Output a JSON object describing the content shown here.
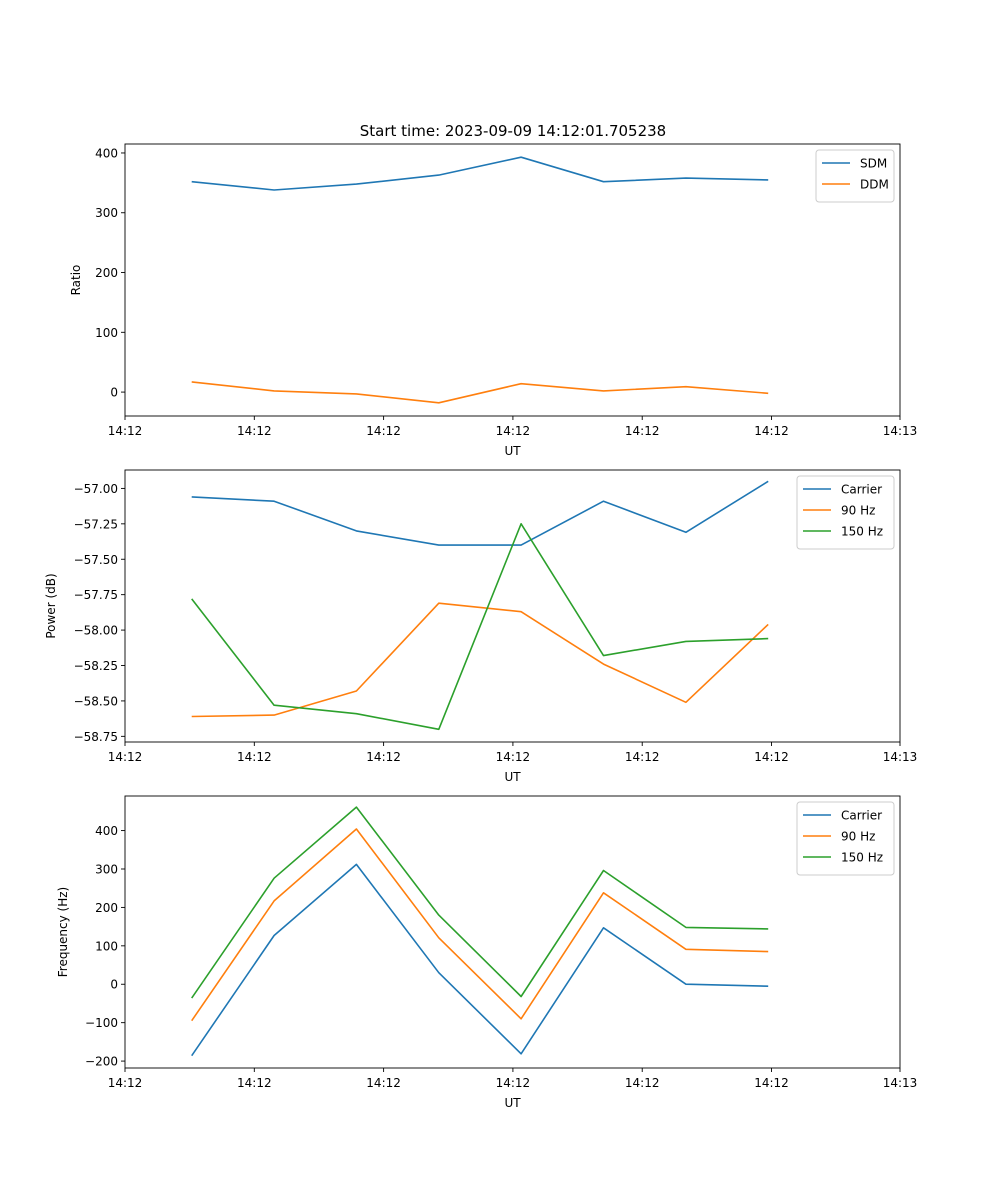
{
  "figure": {
    "title": "Start time: 2023-09-09 14:12:01.705238"
  },
  "chart_data": [
    {
      "type": "line",
      "title": "Start time: 2023-09-09 14:12:01.705238",
      "xlabel": "UT",
      "ylabel": "Ratio",
      "x": [
        1,
        2,
        3,
        4,
        5,
        6,
        7,
        8
      ],
      "xlim": [
        0.19,
        9.6
      ],
      "xticks": [
        0.19,
        1.76,
        3.33,
        4.9,
        6.47,
        8.04,
        9.6
      ],
      "xtick_labels": [
        "14:12",
        "14:12",
        "14:12",
        "14:12",
        "14:12",
        "14:12",
        "14:13"
      ],
      "ylim": [
        -40,
        415
      ],
      "yticks": [
        0,
        100,
        200,
        300,
        400
      ],
      "ytick_labels": [
        "0",
        "100",
        "200",
        "300",
        "400"
      ],
      "legend_position": "top-right",
      "series": [
        {
          "name": "SDM",
          "color": "#1f77b4",
          "values": [
            352,
            338,
            348,
            363,
            393,
            352,
            358,
            355
          ]
        },
        {
          "name": "DDM",
          "color": "#ff7f0e",
          "values": [
            17,
            2,
            -3,
            -18,
            14,
            2,
            9,
            -2
          ]
        }
      ]
    },
    {
      "type": "line",
      "title": "",
      "xlabel": "UT",
      "ylabel": "Power (dB)",
      "x": [
        1,
        2,
        3,
        4,
        5,
        6,
        7,
        8
      ],
      "xlim": [
        0.19,
        9.6
      ],
      "xticks": [
        0.19,
        1.76,
        3.33,
        4.9,
        6.47,
        8.04,
        9.6
      ],
      "xtick_labels": [
        "14:12",
        "14:12",
        "14:12",
        "14:12",
        "14:12",
        "14:12",
        "14:13"
      ],
      "ylim": [
        -58.79,
        -56.87
      ],
      "yticks": [
        -58.75,
        -58.5,
        -58.25,
        -58.0,
        -57.75,
        -57.5,
        -57.25,
        -57.0
      ],
      "ytick_labels": [
        "−58.75",
        "−58.50",
        "−58.25",
        "−58.00",
        "−57.75",
        "−57.50",
        "−57.25",
        "−57.00"
      ],
      "legend_position": "top-right",
      "series": [
        {
          "name": "Carrier",
          "color": "#1f77b4",
          "values": [
            -57.06,
            -57.09,
            -57.3,
            -57.4,
            -57.4,
            -57.09,
            -57.31,
            -56.95
          ]
        },
        {
          "name": "90 Hz",
          "color": "#ff7f0e",
          "values": [
            -58.61,
            -58.6,
            -58.43,
            -57.81,
            -57.87,
            -58.24,
            -58.51,
            -57.96
          ]
        },
        {
          "name": "150 Hz",
          "color": "#2ca02c",
          "values": [
            -57.78,
            -58.53,
            -58.59,
            -58.7,
            -57.25,
            -58.18,
            -58.08,
            -58.06
          ]
        }
      ]
    },
    {
      "type": "line",
      "title": "",
      "xlabel": "UT",
      "ylabel": "Frequency (Hz)",
      "x": [
        1,
        2,
        3,
        4,
        5,
        6,
        7,
        8
      ],
      "xlim": [
        0.19,
        9.6
      ],
      "xticks": [
        0.19,
        1.76,
        3.33,
        4.9,
        6.47,
        8.04,
        9.6
      ],
      "xtick_labels": [
        "14:12",
        "14:12",
        "14:12",
        "14:12",
        "14:12",
        "14:12",
        "14:13"
      ],
      "ylim": [
        -218,
        490
      ],
      "yticks": [
        -200,
        -100,
        0,
        100,
        200,
        300,
        400
      ],
      "ytick_labels": [
        "−200",
        "−100",
        "0",
        "100",
        "200",
        "300",
        "400"
      ],
      "legend_position": "top-right",
      "series": [
        {
          "name": "Carrier",
          "color": "#1f77b4",
          "values": [
            -186,
            127,
            312,
            30,
            -181,
            147,
            0,
            -5
          ]
        },
        {
          "name": "90 Hz",
          "color": "#ff7f0e",
          "values": [
            -95,
            217,
            404,
            121,
            -90,
            238,
            91,
            85
          ]
        },
        {
          "name": "150 Hz",
          "color": "#2ca02c",
          "values": [
            -36,
            276,
            461,
            180,
            -32,
            296,
            148,
            144
          ]
        }
      ]
    }
  ]
}
